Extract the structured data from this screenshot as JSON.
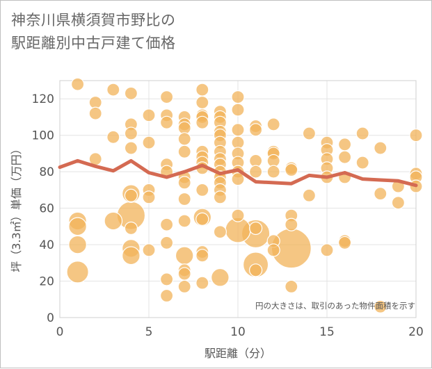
{
  "title_line1": "神奈川県横須賀市野比の",
  "title_line2": "駅距離別中古戸建て価格",
  "chart_data": {
    "type": "scatter",
    "xlabel": "駅距離（分）",
    "ylabel": "坪（3.3㎡）単価（万円）",
    "xlim": [
      0,
      20
    ],
    "ylim": [
      0,
      130
    ],
    "x_ticks": [
      "0",
      "5",
      "10",
      "15",
      "20"
    ],
    "y_ticks": [
      "0",
      "20",
      "40",
      "60",
      "80",
      "100",
      "120"
    ],
    "note": "円の大きさは、取引のあった物件面積を示す",
    "grid": true,
    "bubble_color": "#f2b35a",
    "line_color": "#d46a52",
    "points": [
      {
        "x": 1,
        "y": 128,
        "s": 1
      },
      {
        "x": 1,
        "y": 53,
        "s": 2
      },
      {
        "x": 1,
        "y": 50,
        "s": 2
      },
      {
        "x": 1,
        "y": 40,
        "s": 2
      },
      {
        "x": 1,
        "y": 25,
        "s": 3
      },
      {
        "x": 2,
        "y": 118,
        "s": 1
      },
      {
        "x": 2,
        "y": 112,
        "s": 1
      },
      {
        "x": 2,
        "y": 87,
        "s": 1
      },
      {
        "x": 3,
        "y": 125,
        "s": 1
      },
      {
        "x": 3,
        "y": 99,
        "s": 1
      },
      {
        "x": 3,
        "y": 53,
        "s": 2
      },
      {
        "x": 4,
        "y": 123,
        "s": 1
      },
      {
        "x": 4,
        "y": 106,
        "s": 1
      },
      {
        "x": 4,
        "y": 101,
        "s": 1
      },
      {
        "x": 4,
        "y": 93,
        "s": 1
      },
      {
        "x": 4,
        "y": 68,
        "s": 2
      },
      {
        "x": 4,
        "y": 67,
        "s": 1
      },
      {
        "x": 4,
        "y": 56,
        "s": 5
      },
      {
        "x": 4,
        "y": 49,
        "s": 1
      },
      {
        "x": 4,
        "y": 38,
        "s": 2
      },
      {
        "x": 4,
        "y": 34,
        "s": 2
      },
      {
        "x": 5,
        "y": 111,
        "s": 1
      },
      {
        "x": 5,
        "y": 96,
        "s": 1
      },
      {
        "x": 5,
        "y": 70,
        "s": 1
      },
      {
        "x": 5,
        "y": 66,
        "s": 1
      },
      {
        "x": 5,
        "y": 37,
        "s": 1
      },
      {
        "x": 6,
        "y": 121,
        "s": 1
      },
      {
        "x": 6,
        "y": 111,
        "s": 1
      },
      {
        "x": 6,
        "y": 107,
        "s": 1
      },
      {
        "x": 6,
        "y": 84,
        "s": 1
      },
      {
        "x": 6,
        "y": 80,
        "s": 1
      },
      {
        "x": 6,
        "y": 51,
        "s": 1
      },
      {
        "x": 6,
        "y": 41,
        "s": 1
      },
      {
        "x": 6,
        "y": 21,
        "s": 1
      },
      {
        "x": 6,
        "y": 12,
        "s": 1
      },
      {
        "x": 7,
        "y": 110,
        "s": 1
      },
      {
        "x": 7,
        "y": 106,
        "s": 1
      },
      {
        "x": 7,
        "y": 104,
        "s": 1
      },
      {
        "x": 7,
        "y": 98,
        "s": 1
      },
      {
        "x": 7,
        "y": 91,
        "s": 1
      },
      {
        "x": 7,
        "y": 77,
        "s": 1
      },
      {
        "x": 7,
        "y": 74,
        "s": 1
      },
      {
        "x": 7,
        "y": 65,
        "s": 1
      },
      {
        "x": 7,
        "y": 53,
        "s": 1
      },
      {
        "x": 7,
        "y": 34,
        "s": 2
      },
      {
        "x": 7,
        "y": 26,
        "s": 1
      },
      {
        "x": 7,
        "y": 24,
        "s": 1
      },
      {
        "x": 7,
        "y": 17,
        "s": 1
      },
      {
        "x": 8,
        "y": 125,
        "s": 1
      },
      {
        "x": 8,
        "y": 118,
        "s": 1
      },
      {
        "x": 8,
        "y": 111,
        "s": 1
      },
      {
        "x": 8,
        "y": 110,
        "s": 1
      },
      {
        "x": 8,
        "y": 107,
        "s": 1
      },
      {
        "x": 8,
        "y": 91,
        "s": 1
      },
      {
        "x": 8,
        "y": 88,
        "s": 1
      },
      {
        "x": 8,
        "y": 85,
        "s": 1
      },
      {
        "x": 8,
        "y": 82,
        "s": 1
      },
      {
        "x": 8,
        "y": 70,
        "s": 1
      },
      {
        "x": 8,
        "y": 55,
        "s": 2
      },
      {
        "x": 8,
        "y": 54,
        "s": 1
      },
      {
        "x": 8,
        "y": 36,
        "s": 1
      },
      {
        "x": 8,
        "y": 34,
        "s": 1
      },
      {
        "x": 8,
        "y": 19,
        "s": 1
      },
      {
        "x": 9,
        "y": 113,
        "s": 1
      },
      {
        "x": 9,
        "y": 110,
        "s": 1
      },
      {
        "x": 9,
        "y": 107,
        "s": 1
      },
      {
        "x": 9,
        "y": 102,
        "s": 1
      },
      {
        "x": 9,
        "y": 100,
        "s": 1
      },
      {
        "x": 9,
        "y": 96,
        "s": 1
      },
      {
        "x": 9,
        "y": 91,
        "s": 1
      },
      {
        "x": 9,
        "y": 87,
        "s": 1
      },
      {
        "x": 9,
        "y": 84,
        "s": 1
      },
      {
        "x": 9,
        "y": 80,
        "s": 1
      },
      {
        "x": 9,
        "y": 77,
        "s": 1
      },
      {
        "x": 9,
        "y": 74,
        "s": 1
      },
      {
        "x": 9,
        "y": 70,
        "s": 1
      },
      {
        "x": 9,
        "y": 66,
        "s": 1
      },
      {
        "x": 9,
        "y": 47,
        "s": 1
      },
      {
        "x": 9,
        "y": 22,
        "s": 2
      },
      {
        "x": 10,
        "y": 121,
        "s": 1
      },
      {
        "x": 10,
        "y": 114,
        "s": 1
      },
      {
        "x": 10,
        "y": 103,
        "s": 1
      },
      {
        "x": 10,
        "y": 96,
        "s": 1
      },
      {
        "x": 10,
        "y": 90,
        "s": 1
      },
      {
        "x": 10,
        "y": 85,
        "s": 1
      },
      {
        "x": 10,
        "y": 80,
        "s": 1
      },
      {
        "x": 10,
        "y": 76,
        "s": 1
      },
      {
        "x": 10,
        "y": 56,
        "s": 1
      },
      {
        "x": 10,
        "y": 48,
        "s": 4
      },
      {
        "x": 11,
        "y": 105,
        "s": 1
      },
      {
        "x": 11,
        "y": 103,
        "s": 1
      },
      {
        "x": 11,
        "y": 86,
        "s": 1
      },
      {
        "x": 11,
        "y": 80,
        "s": 1
      },
      {
        "x": 11,
        "y": 49,
        "s": 1
      },
      {
        "x": 11,
        "y": 46,
        "s": 5
      },
      {
        "x": 11,
        "y": 29,
        "s": 4
      },
      {
        "x": 11,
        "y": 26,
        "s": 1
      },
      {
        "x": 12,
        "y": 106,
        "s": 1
      },
      {
        "x": 12,
        "y": 91,
        "s": 1
      },
      {
        "x": 12,
        "y": 90,
        "s": 1
      },
      {
        "x": 12,
        "y": 86,
        "s": 1
      },
      {
        "x": 12,
        "y": 80,
        "s": 1
      },
      {
        "x": 12,
        "y": 42,
        "s": 1
      },
      {
        "x": 12,
        "y": 37,
        "s": 1
      },
      {
        "x": 13,
        "y": 82,
        "s": 1
      },
      {
        "x": 13,
        "y": 81,
        "s": 1
      },
      {
        "x": 13,
        "y": 56,
        "s": 1
      },
      {
        "x": 13,
        "y": 51,
        "s": 1
      },
      {
        "x": 13,
        "y": 38,
        "s": 10
      },
      {
        "x": 13,
        "y": 17,
        "s": 1
      },
      {
        "x": 14,
        "y": 101,
        "s": 1
      },
      {
        "x": 14,
        "y": 67,
        "s": 1
      },
      {
        "x": 15,
        "y": 96,
        "s": 1
      },
      {
        "x": 15,
        "y": 92,
        "s": 1
      },
      {
        "x": 15,
        "y": 87,
        "s": 1
      },
      {
        "x": 15,
        "y": 82,
        "s": 1
      },
      {
        "x": 15,
        "y": 77,
        "s": 1
      },
      {
        "x": 15,
        "y": 37,
        "s": 1
      },
      {
        "x": 16,
        "y": 95,
        "s": 1
      },
      {
        "x": 16,
        "y": 88,
        "s": 1
      },
      {
        "x": 16,
        "y": 77,
        "s": 1
      },
      {
        "x": 16,
        "y": 42,
        "s": 1
      },
      {
        "x": 16,
        "y": 41,
        "s": 1
      },
      {
        "x": 17,
        "y": 101,
        "s": 1
      },
      {
        "x": 17,
        "y": 85,
        "s": 1
      },
      {
        "x": 18,
        "y": 93,
        "s": 1
      },
      {
        "x": 18,
        "y": 68,
        "s": 1
      },
      {
        "x": 18,
        "y": 6,
        "s": 1
      },
      {
        "x": 19,
        "y": 72,
        "s": 1
      },
      {
        "x": 19,
        "y": 63,
        "s": 1
      },
      {
        "x": 20,
        "y": 100,
        "s": 1
      },
      {
        "x": 20,
        "y": 79,
        "s": 1
      },
      {
        "x": 20,
        "y": 77,
        "s": 1
      },
      {
        "x": 20,
        "y": 72,
        "s": 1
      }
    ],
    "avg_line": [
      {
        "x": 0,
        "y": 82.5
      },
      {
        "x": 1,
        "y": 86
      },
      {
        "x": 2,
        "y": 83
      },
      {
        "x": 3,
        "y": 80.5
      },
      {
        "x": 4,
        "y": 86
      },
      {
        "x": 5,
        "y": 79.5
      },
      {
        "x": 6,
        "y": 77
      },
      {
        "x": 7,
        "y": 80
      },
      {
        "x": 8,
        "y": 83.5
      },
      {
        "x": 9,
        "y": 79
      },
      {
        "x": 10,
        "y": 81
      },
      {
        "x": 11,
        "y": 74.5
      },
      {
        "x": 12,
        "y": 74
      },
      {
        "x": 13,
        "y": 73.5
      },
      {
        "x": 14,
        "y": 78
      },
      {
        "x": 15,
        "y": 77
      },
      {
        "x": 16,
        "y": 79.5
      },
      {
        "x": 17,
        "y": 76
      },
      {
        "x": 18,
        "y": 75.5
      },
      {
        "x": 19,
        "y": 75
      },
      {
        "x": 20,
        "y": 72.5
      }
    ]
  }
}
